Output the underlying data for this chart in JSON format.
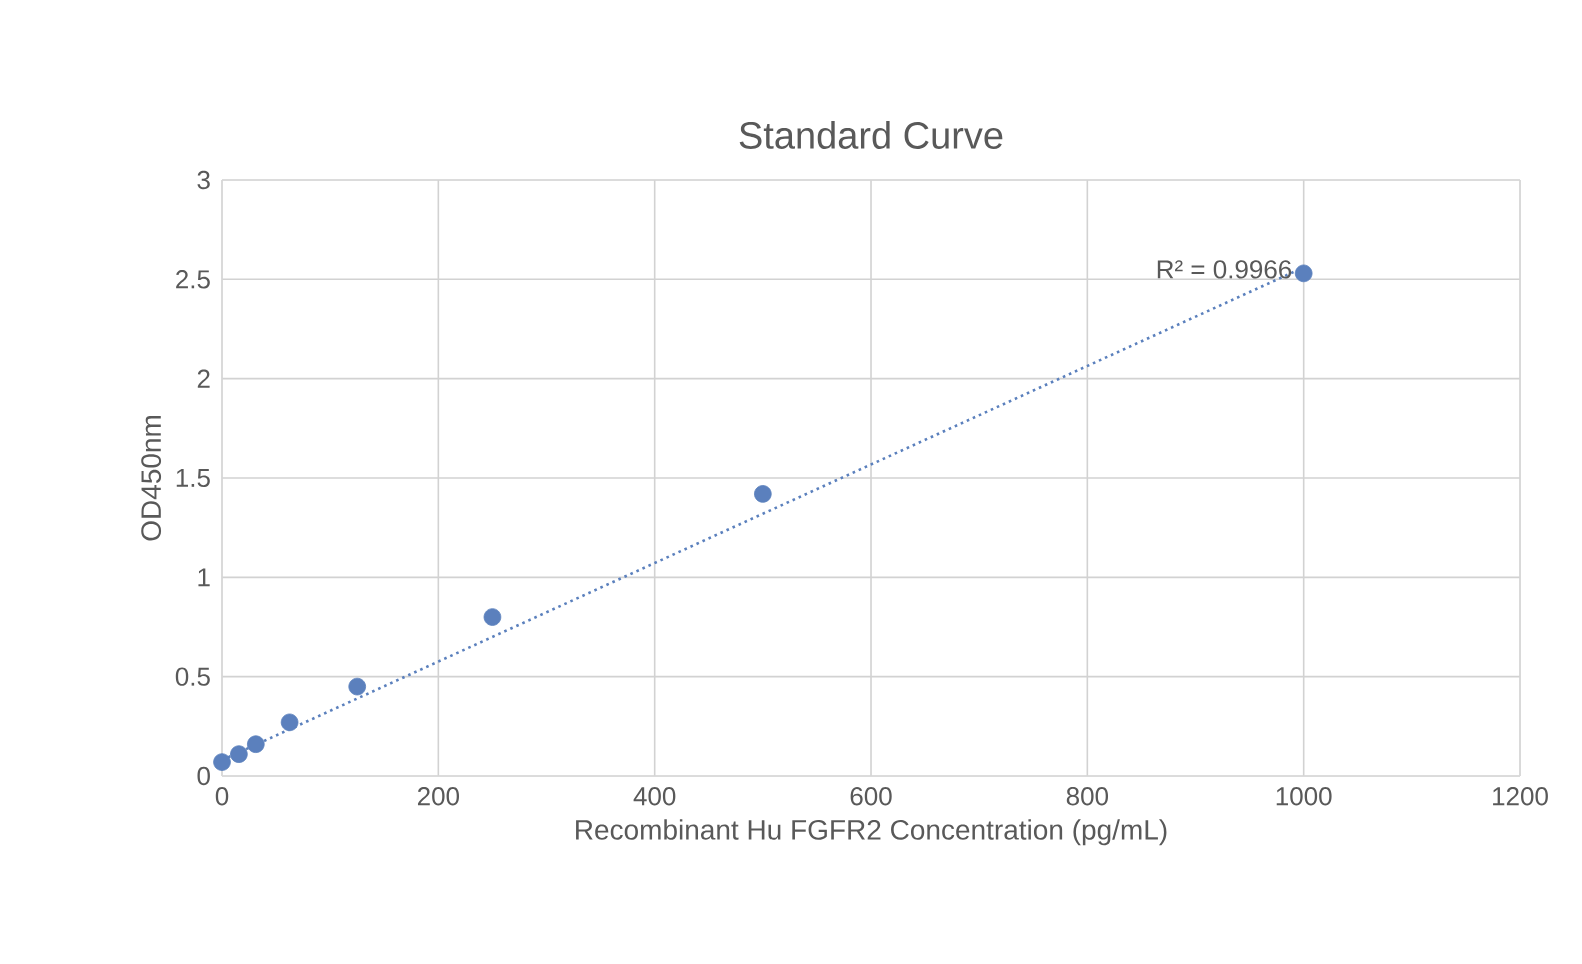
{
  "chart_data": {
    "type": "scatter",
    "title": "Standard Curve",
    "xlabel": "Recombinant Hu FGFR2 Concentration (pg/mL)",
    "ylabel": "OD450nm",
    "series": [
      {
        "color": "#5b80bd",
        "marker": "circle",
        "x": [
          0,
          15.6,
          31.25,
          62.5,
          125,
          250,
          500,
          1000
        ],
        "values": [
          0.07,
          0.11,
          0.16,
          0.27,
          0.45,
          0.8,
          1.42,
          2.53
        ]
      },
      {
        "type": "line",
        "color": "#5b80bd",
        "marker": "none",
        "line_style": "dotted",
        "x": [
          0,
          1000
        ],
        "values": [
          0.08,
          2.56
        ]
      }
    ],
    "annotations": [
      "R² = 0.9966"
    ],
    "xlim": [
      0,
      1200
    ],
    "xticks": [
      0,
      200,
      400,
      600,
      800,
      1000,
      1200
    ],
    "ylim": [
      0,
      3
    ],
    "yticks": [
      0,
      0.5,
      1,
      1.5,
      2,
      2.5,
      3
    ],
    "grid": true
  }
}
